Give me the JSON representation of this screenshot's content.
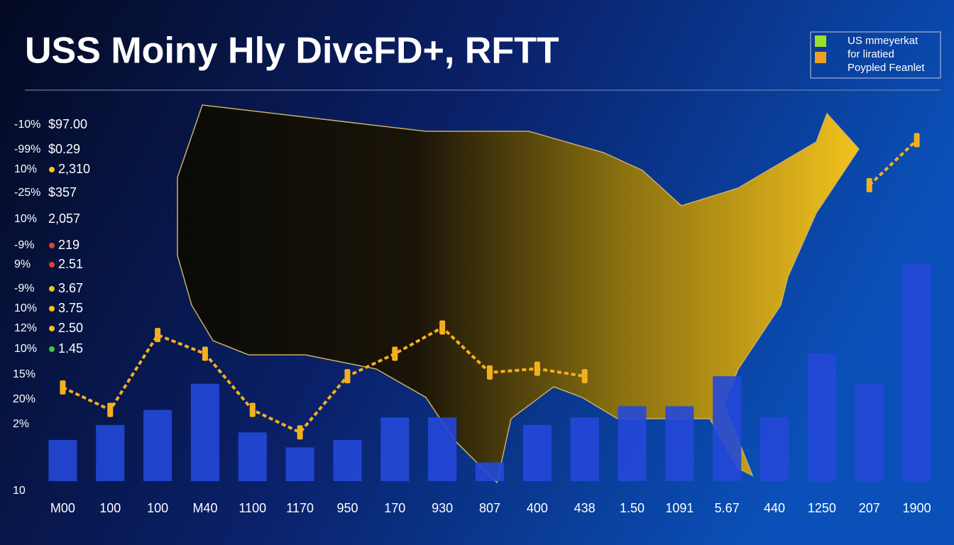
{
  "chart_data": {
    "type": "bar",
    "title": "USS Moiny Hly DiveFD+, RFTT",
    "legend": {
      "entries": [
        {
          "label": "US mmeyerkat",
          "color": "#9be02a"
        },
        {
          "label": "for liratied",
          "color": "#f0a020"
        },
        {
          "label": "Poypled Feanlet"
        }
      ]
    },
    "side_labels": [
      {
        "pct": "-10%",
        "value": "$97.00"
      },
      {
        "pct": "-99%",
        "value": "$0.29"
      },
      {
        "pct": "10%",
        "value": "2,310",
        "dot": "#f2c21e"
      },
      {
        "pct": "-25%",
        "value": "$357"
      },
      {
        "pct": "10%",
        "value": "2,057"
      },
      {
        "pct": "-9%",
        "value": "219",
        "dot": "#e0402a"
      },
      {
        "pct": "9%",
        "value": "2.51",
        "dot": "#e0402a"
      },
      {
        "pct": "-9%",
        "value": "3.67",
        "dot": "#f2c21e"
      },
      {
        "pct": "10%",
        "value": "3.75",
        "dot": "#f2c21e"
      },
      {
        "pct": "12%",
        "value": "2.50",
        "dot": "#f2c21e"
      },
      {
        "pct": "10%",
        "value": "1.45",
        "dot": "#3ec83a"
      }
    ],
    "axis_labels": [
      "15%",
      "20%",
      "2%",
      "10"
    ],
    "categories": [
      "M00",
      "100",
      "100",
      "M40",
      "1100",
      "1170",
      "950",
      "170",
      "930",
      "807",
      "400",
      "438",
      "1.50",
      "1091",
      "5.67",
      "440",
      "1250",
      "207",
      "1900"
    ],
    "ylim": [
      0,
      100
    ],
    "series": [
      {
        "type": "bar",
        "color": "#2448d8",
        "values": [
          11,
          15,
          19,
          26,
          13,
          9,
          11,
          17,
          17,
          5,
          15,
          17,
          20,
          20,
          28,
          17,
          34,
          26,
          58
        ]
      },
      {
        "type": "line",
        "color": "#f2b01e",
        "values": [
          25,
          19,
          39,
          34,
          19,
          13,
          28,
          34,
          41,
          29,
          30,
          28,
          null,
          null,
          null,
          null,
          null,
          79,
          91
        ]
      }
    ]
  }
}
